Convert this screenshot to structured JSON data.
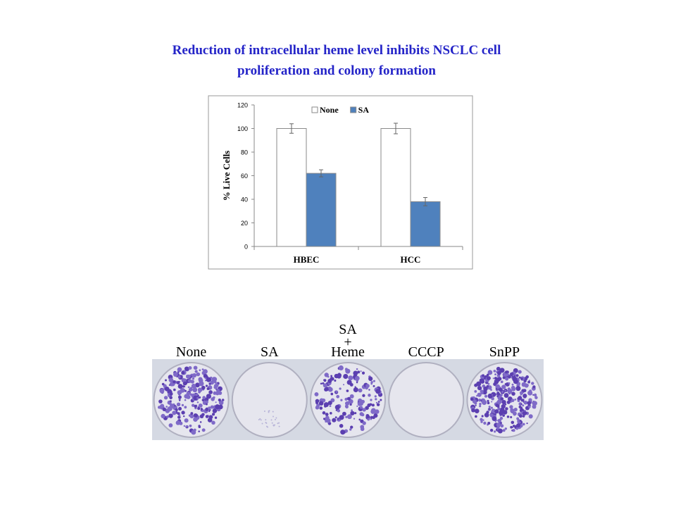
{
  "title": [
    "Reduction of intracellular heme level inhibits NSCLC cell",
    "proliferation and colony formation"
  ],
  "chart_data": {
    "type": "bar",
    "ylabel": "% Live Cells",
    "categories": [
      "HBEC",
      "HCC"
    ],
    "series": [
      {
        "name": "None",
        "color": "#ffffff",
        "values": [
          100,
          100
        ],
        "errors": [
          4,
          4.5
        ]
      },
      {
        "name": "SA",
        "color": "#4f81bd",
        "values": [
          62,
          38
        ],
        "errors": [
          3,
          3.5
        ]
      }
    ],
    "ylim": [
      0,
      120
    ],
    "yticks": [
      0,
      20,
      40,
      60,
      80,
      100,
      120
    ],
    "grid": false
  },
  "plates": {
    "labels": [
      [
        "None"
      ],
      [
        "SA"
      ],
      [
        "SA",
        "+",
        "Heme"
      ],
      [
        "CCCP"
      ],
      [
        "SnPP"
      ]
    ]
  }
}
